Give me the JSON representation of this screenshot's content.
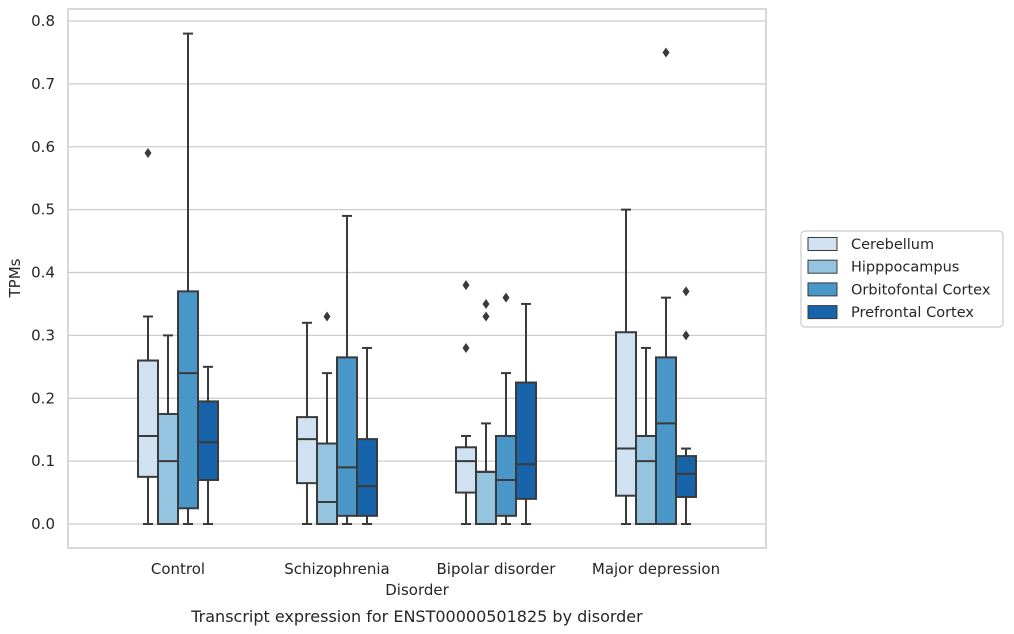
{
  "chart_data": {
    "type": "boxplot",
    "xlabel": "Disorder",
    "ylabel": "TPMs",
    "caption": "Transcript expression for ENST00000501825 by disorder",
    "ylim": [
      -0.04,
      0.82
    ],
    "yticks": [
      "0.0",
      "0.1",
      "0.2",
      "0.3",
      "0.4",
      "0.5",
      "0.6",
      "0.7",
      "0.8"
    ],
    "ytick_values": [
      0,
      0.1,
      0.2,
      0.3,
      0.4,
      0.5,
      0.6,
      0.7,
      0.8
    ],
    "grid": "horizontal",
    "legend_position": "right",
    "categories": [
      "Control",
      "Schizophrenia",
      "Bipolar disorder",
      "Major depression"
    ],
    "series": [
      {
        "name": "Cerebellum",
        "color": "#d0e1f2",
        "boxes": [
          {
            "whislo": 0,
            "q1": 0.075,
            "med": 0.14,
            "q3": 0.26,
            "whishi": 0.33,
            "fliers": [
              0.59
            ]
          },
          {
            "whislo": 0,
            "q1": 0.065,
            "med": 0.135,
            "q3": 0.17,
            "whishi": 0.32,
            "fliers": []
          },
          {
            "whislo": 0,
            "q1": 0.05,
            "med": 0.1,
            "q3": 0.122,
            "whishi": 0.14,
            "fliers": [
              0.28,
              0.38
            ]
          },
          {
            "whislo": 0,
            "q1": 0.045,
            "med": 0.12,
            "q3": 0.305,
            "whishi": 0.5,
            "fliers": []
          }
        ]
      },
      {
        "name": "Hipppocampus",
        "color": "#94c4df",
        "boxes": [
          {
            "whislo": 0,
            "q1": 0,
            "med": 0.1,
            "q3": 0.175,
            "whishi": 0.3,
            "fliers": []
          },
          {
            "whislo": 0,
            "q1": 0,
            "med": 0.035,
            "q3": 0.128,
            "whishi": 0.24,
            "fliers": [
              0.33
            ]
          },
          {
            "whislo": 0,
            "q1": 0,
            "med": 0.083,
            "q3": 0.083,
            "whishi": 0.16,
            "fliers": [
              0.33,
              0.35
            ]
          },
          {
            "whislo": 0,
            "q1": 0,
            "med": 0.1,
            "q3": 0.14,
            "whishi": 0.28,
            "fliers": []
          }
        ]
      },
      {
        "name": "Orbitofontal Cortex",
        "color": "#4a98c9",
        "boxes": [
          {
            "whislo": 0,
            "q1": 0.025,
            "med": 0.24,
            "q3": 0.37,
            "whishi": 0.78,
            "fliers": []
          },
          {
            "whislo": 0,
            "q1": 0.013,
            "med": 0.09,
            "q3": 0.265,
            "whishi": 0.49,
            "fliers": []
          },
          {
            "whislo": 0,
            "q1": 0.013,
            "med": 0.07,
            "q3": 0.14,
            "whishi": 0.24,
            "fliers": [
              0.36
            ]
          },
          {
            "whislo": 0,
            "q1": 0,
            "med": 0.16,
            "q3": 0.265,
            "whishi": 0.36,
            "fliers": [
              0.75
            ]
          }
        ]
      },
      {
        "name": "Prefrontal Cortex",
        "color": "#1764ab",
        "boxes": [
          {
            "whislo": 0,
            "q1": 0.07,
            "med": 0.13,
            "q3": 0.195,
            "whishi": 0.25,
            "fliers": []
          },
          {
            "whislo": 0,
            "q1": 0.013,
            "med": 0.06,
            "q3": 0.135,
            "whishi": 0.28,
            "fliers": []
          },
          {
            "whislo": 0,
            "q1": 0.04,
            "med": 0.095,
            "q3": 0.225,
            "whishi": 0.35,
            "fliers": []
          },
          {
            "whislo": 0,
            "q1": 0.043,
            "med": 0.08,
            "q3": 0.108,
            "whishi": 0.12,
            "fliers": [
              0.3,
              0.37
            ]
          }
        ]
      }
    ]
  }
}
